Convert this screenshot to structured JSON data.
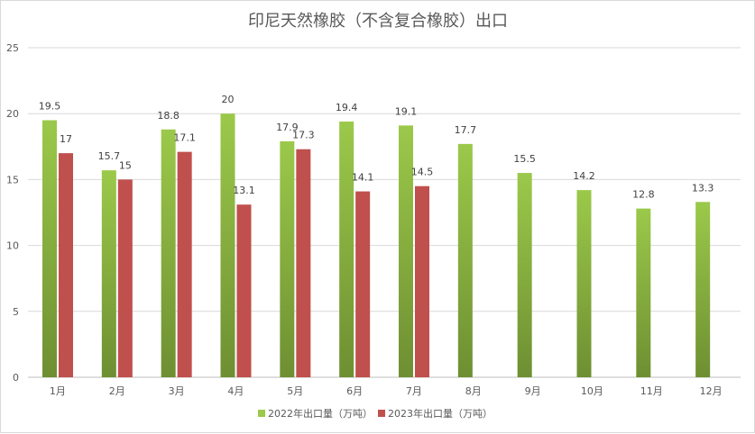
{
  "chart_data": {
    "type": "bar",
    "title": "印尼天然橡胶（不含复合橡胶）出口",
    "xlabel": "",
    "ylabel": "",
    "ylim": [
      0,
      25
    ],
    "yticks": [
      0,
      5,
      10,
      15,
      20,
      25
    ],
    "grid": true,
    "legend_position": "bottom",
    "categories": [
      "1月",
      "2月",
      "3月",
      "4月",
      "5月",
      "6月",
      "7月",
      "8月",
      "9月",
      "10月",
      "11月",
      "12月"
    ],
    "series": [
      {
        "name": "2022年出口量（万吨）",
        "color_top": "#9BC94A",
        "color_bottom": "#6E8F32",
        "values": [
          19.5,
          15.7,
          18.8,
          20,
          17.9,
          19.4,
          19.1,
          17.7,
          15.5,
          14.2,
          12.8,
          13.3
        ]
      },
      {
        "name": "2023年出口量（万吨）",
        "color_top": "#C0504D",
        "color_bottom": "#C0504D",
        "values": [
          17,
          15,
          17.1,
          13.1,
          17.3,
          14.1,
          14.5,
          null,
          null,
          null,
          null,
          null
        ]
      }
    ]
  }
}
